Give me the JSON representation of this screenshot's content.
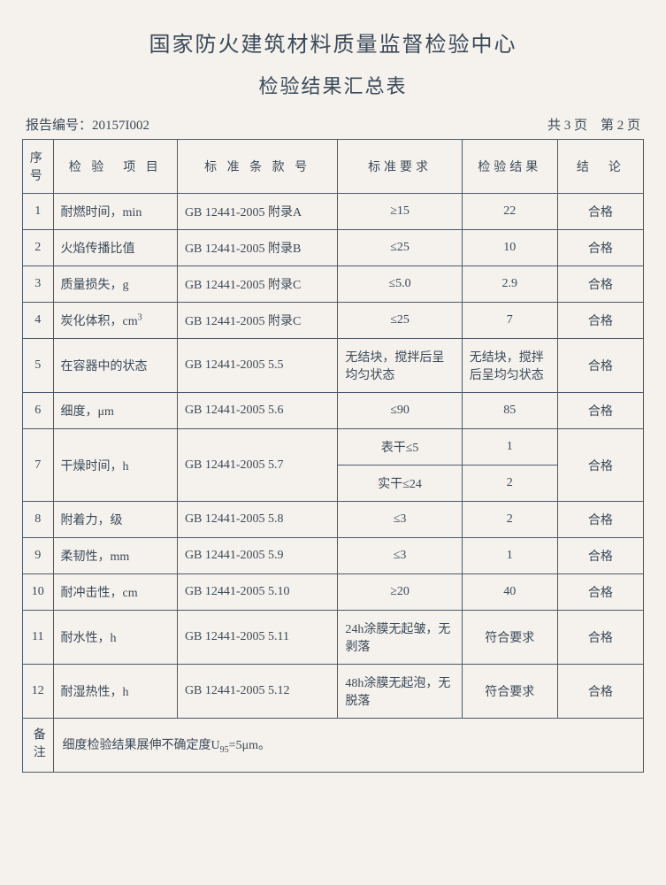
{
  "header": {
    "org": "国家防火建筑材料质量监督检验中心",
    "title": "检验结果汇总表",
    "report_label": "报告编号：",
    "report_no": "20157I002",
    "page_info": "共 3 页　第 2 页"
  },
  "columns": {
    "seq": "序号",
    "item": "检 验　项 目",
    "std": "标 准 条 款 号",
    "req": "标准要求",
    "res": "检验结果",
    "con": "结　论"
  },
  "rows": [
    {
      "seq": "1",
      "item": "耐燃时间，min",
      "std": "GB 12441-2005 附录A",
      "req": "≥15",
      "res": "22",
      "con": "合格"
    },
    {
      "seq": "2",
      "item": "火焰传播比值",
      "std": "GB 12441-2005 附录B",
      "req": "≤25",
      "res": "10",
      "con": "合格"
    },
    {
      "seq": "3",
      "item": "质量损失，g",
      "std": "GB 12441-2005 附录C",
      "req": "≤5.0",
      "res": "2.9",
      "con": "合格"
    },
    {
      "seq": "4",
      "item_html": "炭化体积，cm<sup>3</sup>",
      "std": "GB 12441-2005 附录C",
      "req": "≤25",
      "res": "7",
      "con": "合格"
    },
    {
      "seq": "5",
      "item": "在容器中的状态",
      "std": "GB 12441-2005 5.5",
      "req": "无结块，搅拌后呈均匀状态",
      "res": "无结块，搅拌后呈均匀状态",
      "con": "合格"
    },
    {
      "seq": "6",
      "item": "细度，μm",
      "std": "GB 12441-2005 5.6",
      "req": "≤90",
      "res": "85",
      "con": "合格"
    },
    {
      "seq": "7",
      "item": "干燥时间，h",
      "std": "GB 12441-2005 5.7",
      "req1": "表干≤5",
      "res1": "1",
      "req2": "实干≤24",
      "res2": "2",
      "con": "合格"
    },
    {
      "seq": "8",
      "item": "附着力，级",
      "std": "GB 12441-2005 5.8",
      "req": "≤3",
      "res": "2",
      "con": "合格"
    },
    {
      "seq": "9",
      "item": "柔韧性，mm",
      "std": "GB 12441-2005 5.9",
      "req": "≤3",
      "res": "1",
      "con": "合格"
    },
    {
      "seq": "10",
      "item": "耐冲击性，cm",
      "std": "GB 12441-2005 5.10",
      "req": "≥20",
      "res": "40",
      "con": "合格"
    },
    {
      "seq": "11",
      "item": "耐水性，h",
      "std": "GB 12441-2005 5.11",
      "req": "24h涂膜无起皱，无剥落",
      "res": "符合要求",
      "con": "合格"
    },
    {
      "seq": "12",
      "item": "耐湿热性，h",
      "std": "GB 12441-2005 5.12",
      "req": "48h涂膜无起泡，无脱落",
      "res": "符合要求",
      "con": "合格"
    }
  ],
  "note": {
    "label": "备注",
    "text_html": "细度检验结果展伸不确定度U<sub>95</sub>=5μm。"
  },
  "style": {
    "background": "#f5f1ec",
    "text_color": "#3a4a5a",
    "border_color": "#4a5a6a",
    "title_fontsize": 24,
    "body_fontsize": 14
  }
}
